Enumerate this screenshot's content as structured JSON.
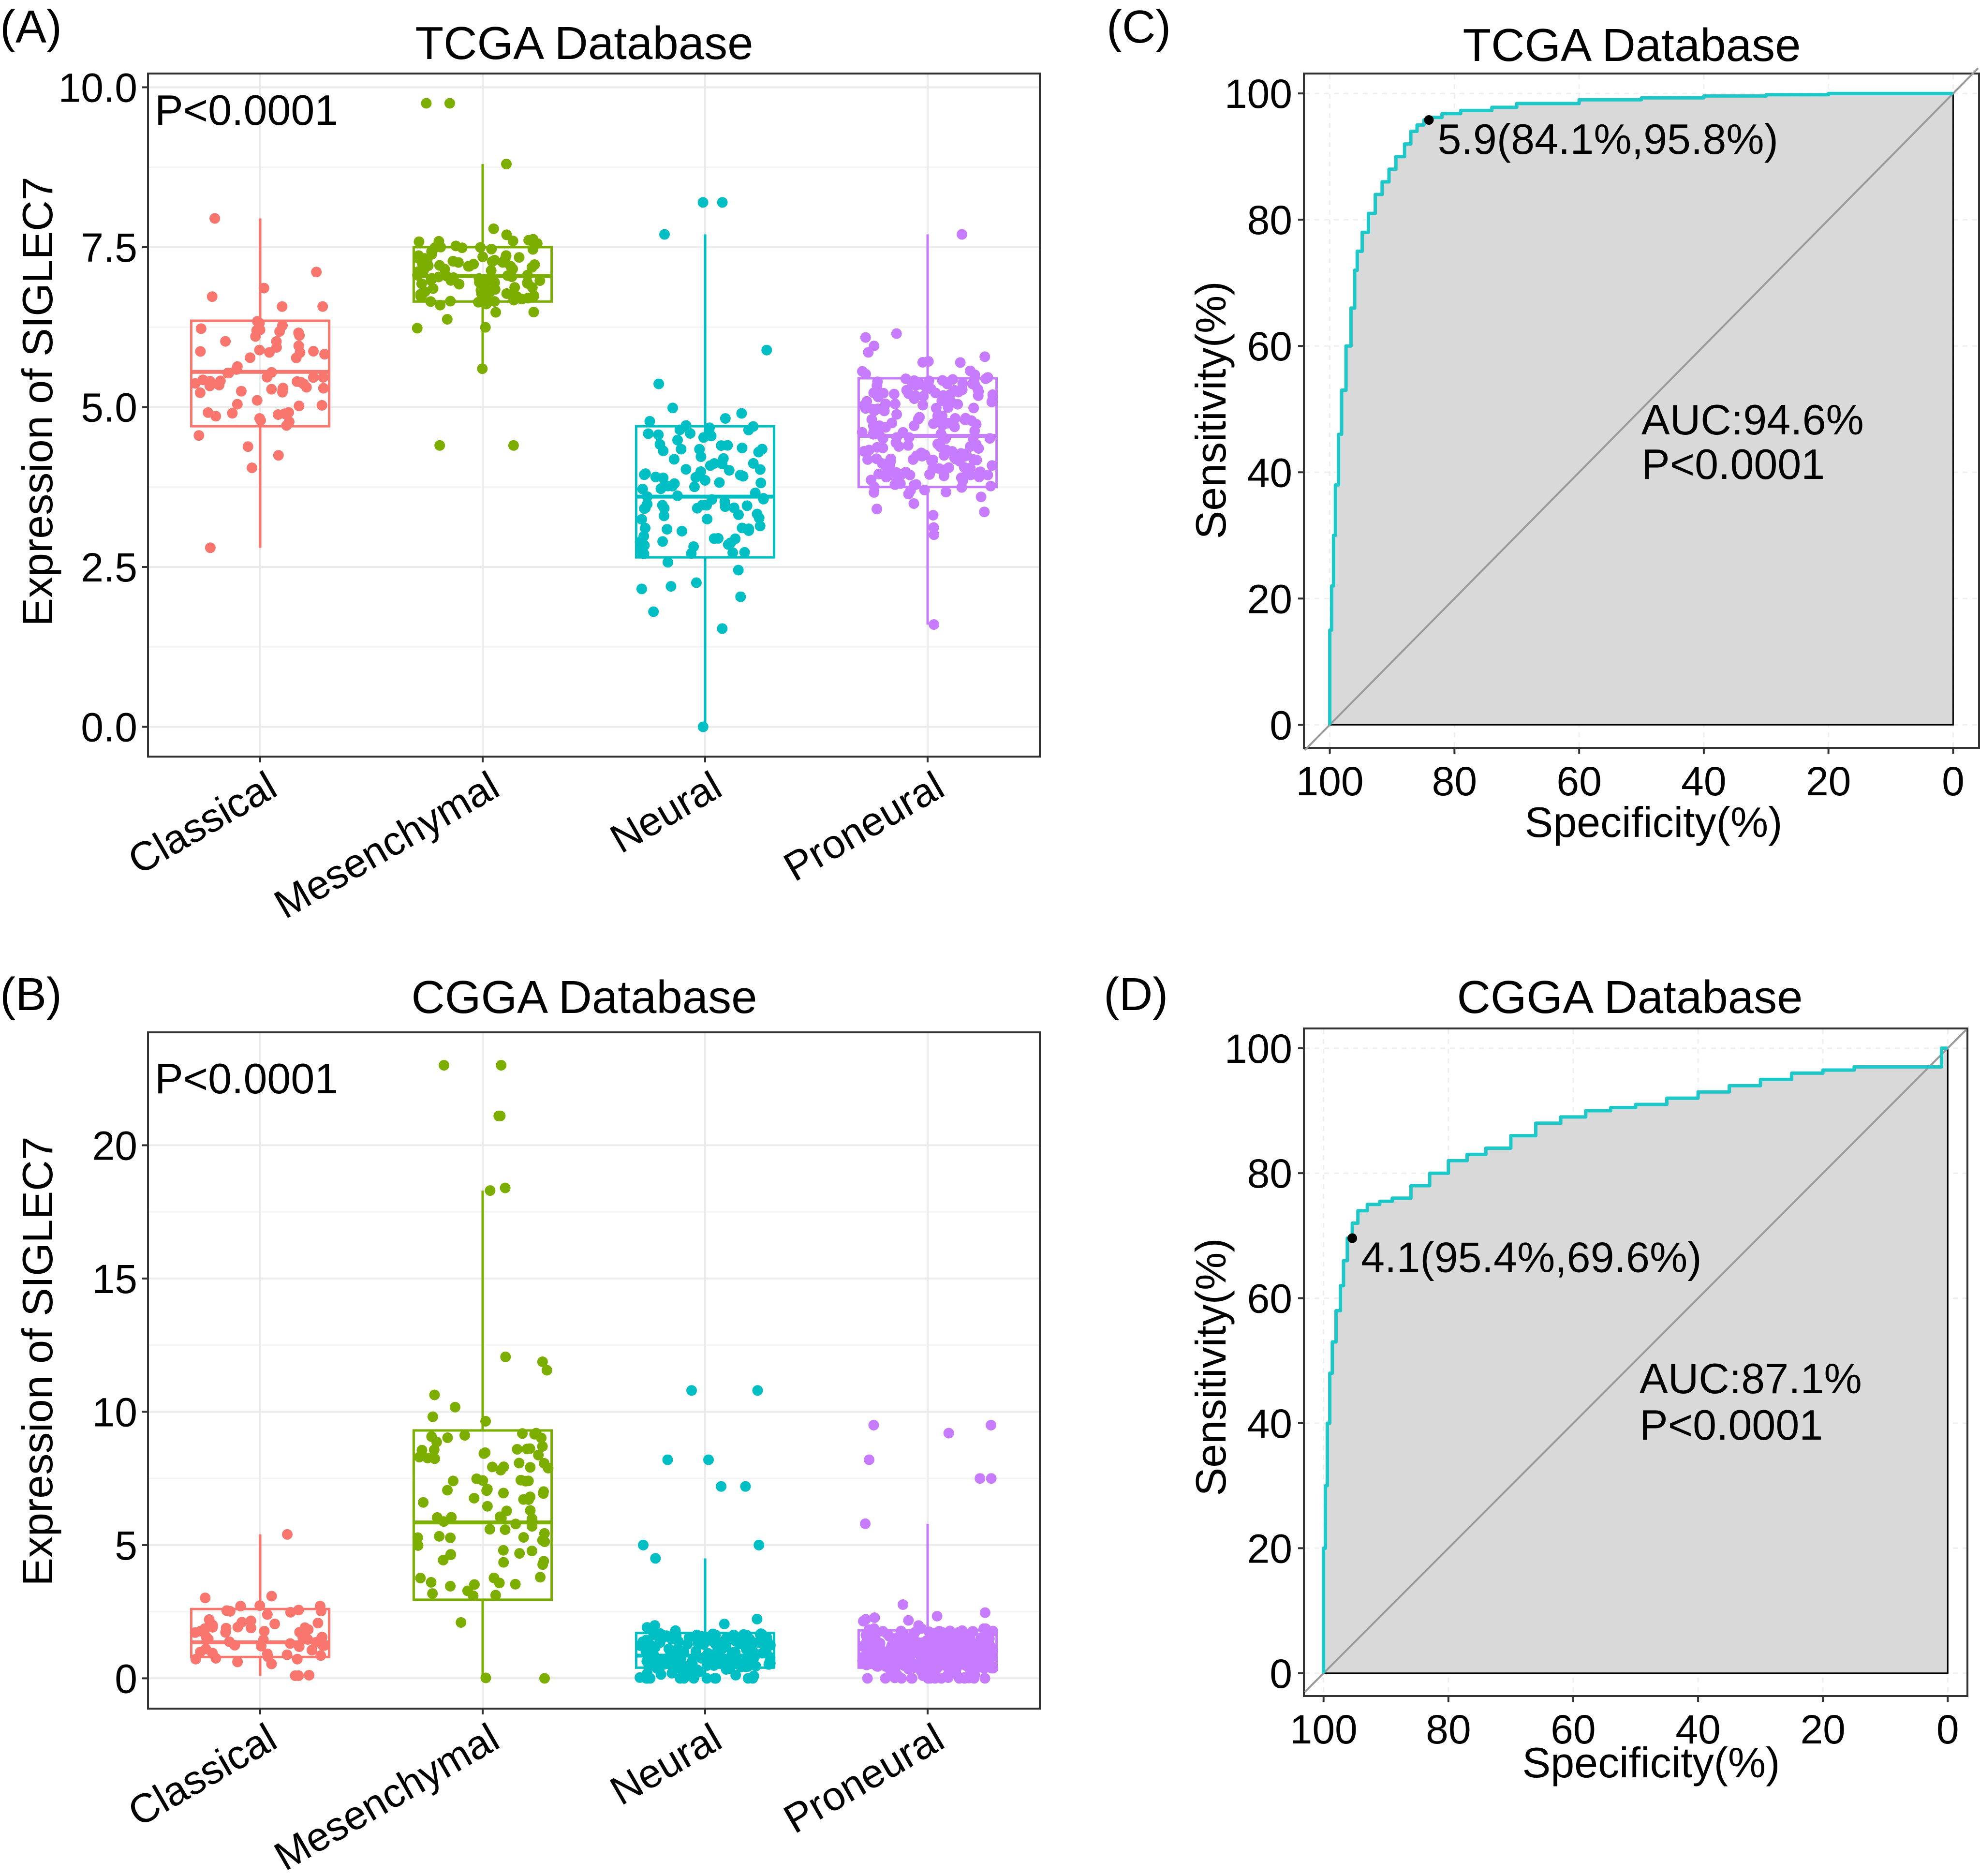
{
  "colors": {
    "classical": "#F8766D",
    "mesenchymal": "#7CAE00",
    "neural": "#00BFC4",
    "proneural": "#C77CFF",
    "roc_line": "#1FC8C8",
    "roc_fill": "#D9D9D9",
    "grid": "#EBEBEB"
  },
  "chart_data": [
    {
      "panel": "(A)",
      "type": "box",
      "title": "TCGA Database",
      "ylabel": "Expression of SIGLEC7",
      "xlabel": "",
      "ylim": [
        -0.45,
        10.2
      ],
      "yticks": [
        0.0,
        2.5,
        5.0,
        7.5,
        10.0
      ],
      "ytick_labels": [
        "0.0",
        "2.5",
        "5.0",
        "7.5",
        "10.0"
      ],
      "annotation": "P<0.0001",
      "categories": [
        "Classical",
        "Mesenchymal",
        "Neural",
        "Proneural"
      ],
      "series": [
        {
          "name": "Classical",
          "n": 70,
          "min": 2.8,
          "q1": 4.7,
          "median": 5.55,
          "q3": 6.35,
          "max": 7.95,
          "outliers": []
        },
        {
          "name": "Mesenchymal",
          "n": 100,
          "min": 5.6,
          "q1": 6.65,
          "median": 7.05,
          "q3": 7.5,
          "max": 8.8,
          "outliers": [
            9.75,
            9.75,
            4.4,
            4.4
          ]
        },
        {
          "name": "Neural",
          "n": 110,
          "min": 0.0,
          "q1": 2.65,
          "median": 3.6,
          "q3": 4.7,
          "max": 7.7,
          "outliers": [
            8.2,
            8.2
          ]
        },
        {
          "name": "Proneural",
          "n": 190,
          "min": 1.6,
          "q1": 3.75,
          "median": 4.55,
          "q3": 5.45,
          "max": 7.7,
          "outliers": []
        }
      ]
    },
    {
      "panel": "(B)",
      "type": "box",
      "title": "CGGA Database",
      "ylabel": "Expression of SIGLEC7",
      "xlabel": "",
      "ylim": [
        -1.1,
        24.2
      ],
      "yticks": [
        0,
        5,
        10,
        15,
        20
      ],
      "ytick_labels": [
        "0",
        "5",
        "10",
        "15",
        "20"
      ],
      "annotation": "P<0.0001",
      "categories": [
        "Classical",
        "Mesenchymal",
        "Neural",
        "Proneural"
      ],
      "series": [
        {
          "name": "Classical",
          "n": 60,
          "min": 0.1,
          "q1": 0.8,
          "median": 1.35,
          "q3": 2.6,
          "max": 5.4,
          "outliers": []
        },
        {
          "name": "Mesenchymal",
          "n": 95,
          "min": 0.0,
          "q1": 2.95,
          "median": 5.85,
          "q3": 9.3,
          "max": 18.3,
          "outliers": [
            23.0,
            23.0,
            21.1,
            21.1,
            18.4
          ]
        },
        {
          "name": "Neural",
          "n": 170,
          "min": 0.0,
          "q1": 0.4,
          "median": 0.85,
          "q3": 1.7,
          "max": 4.5,
          "outliers": [
            10.8,
            10.8,
            8.2,
            8.2,
            7.2,
            7.2,
            5.0,
            5.0
          ]
        },
        {
          "name": "Proneural",
          "n": 330,
          "min": 0.0,
          "q1": 0.4,
          "median": 0.9,
          "q3": 1.8,
          "max": 5.8,
          "outliers": [
            9.5,
            9.5,
            9.2,
            8.2,
            7.5,
            7.5
          ]
        }
      ]
    },
    {
      "panel": "(C)",
      "type": "line",
      "title": "TCGA Database",
      "xlabel": "Specificity(%)",
      "ylabel": "Sensitivity(%)",
      "xlim": [
        104,
        -4
      ],
      "ylim": [
        -3.5,
        103
      ],
      "xticks": [
        100,
        80,
        60,
        40,
        20,
        0
      ],
      "xtick_labels": [
        "100",
        "80",
        "60",
        "40",
        "20",
        "0"
      ],
      "yticks": [
        0,
        20,
        40,
        60,
        80,
        100
      ],
      "ytick_labels": [
        "0",
        "20",
        "40",
        "60",
        "80",
        "100"
      ],
      "auc_label": "AUC:94.6%",
      "p_label": "P<0.0001",
      "cutoff": {
        "specificity": 84.1,
        "sensitivity": 95.8,
        "label": "5.9(84.1%,95.8%)"
      },
      "roc": {
        "specificity": [
          100,
          100,
          99.7,
          99.4,
          99.1,
          98.6,
          98.1,
          97.4,
          96.6,
          96.0,
          95.6,
          94.8,
          93.8,
          92.7,
          91.6,
          90.5,
          89.4,
          88.0,
          87.0,
          86.0,
          84.9,
          84.1,
          82.0,
          79.0,
          74.0,
          70.0,
          60.0,
          50.0,
          40.0,
          30.0,
          20.0,
          10.0,
          5.0,
          0.0
        ],
        "sensitivity": [
          0,
          8,
          15,
          22,
          30,
          38,
          46,
          53,
          60,
          66,
          72,
          75,
          78,
          81,
          84,
          86,
          88,
          90,
          92,
          94,
          95,
          95.8,
          96.2,
          96.8,
          97.3,
          97.8,
          98.4,
          99.0,
          99.3,
          99.6,
          99.8,
          100,
          100,
          100
        ]
      }
    },
    {
      "panel": "(D)",
      "type": "line",
      "title": "CGGA Database",
      "xlabel": "Specificity(%)",
      "ylabel": "Sensitivity(%)",
      "xlim": [
        103,
        -3
      ],
      "ylim": [
        -3.5,
        103
      ],
      "xticks": [
        100,
        80,
        60,
        40,
        20,
        0
      ],
      "xtick_labels": [
        "100",
        "80",
        "60",
        "40",
        "20",
        "0"
      ],
      "yticks": [
        0,
        20,
        40,
        60,
        80,
        100
      ],
      "ytick_labels": [
        "0",
        "20",
        "40",
        "60",
        "80",
        "100"
      ],
      "auc_label": "AUC:87.1%",
      "p_label": "P<0.0001",
      "cutoff": {
        "specificity": 95.4,
        "sensitivity": 69.6,
        "label": "4.1(95.4%,69.6%)"
      },
      "roc": {
        "specificity": [
          100,
          100,
          99.7,
          99.4,
          99.0,
          98.6,
          98.0,
          97.3,
          96.8,
          96.2,
          95.4,
          94.5,
          93.0,
          91.0,
          89.0,
          86.0,
          83.0,
          80.0,
          77.0,
          74.0,
          70.0,
          66.0,
          62.0,
          58.0,
          54.0,
          50.0,
          45.0,
          40.0,
          35.0,
          30.0,
          25.0,
          20.0,
          15.0,
          10.0,
          5.0,
          1.0,
          0.0
        ],
        "sensitivity": [
          0,
          10,
          20,
          30,
          40,
          48,
          53,
          58,
          62,
          66,
          69.6,
          72,
          74,
          75,
          75.5,
          76,
          78,
          80,
          82,
          83,
          84,
          86,
          88,
          89,
          90,
          90.5,
          91,
          92,
          93,
          94,
          95,
          96,
          96.5,
          97,
          97,
          97,
          100
        ]
      }
    }
  ]
}
